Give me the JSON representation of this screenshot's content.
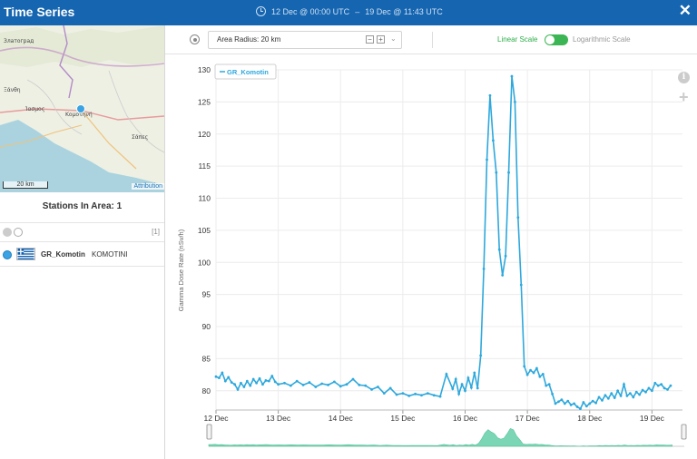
{
  "header": {
    "title": "Time Series",
    "range_start": "12 Dec @ 00:00 UTC",
    "range_sep": "–",
    "range_end": "19 Dec @ 11:43 UTC",
    "close_symbol": "✕"
  },
  "map": {
    "labels": [
      "Златоград",
      "Ξάνθη",
      "Κομοτηνή",
      "Ίασμος",
      "Σάπες"
    ],
    "scale": "20 km",
    "attribution": "Attribution"
  },
  "stations": {
    "title": "Stations In Area: 1",
    "count": "[1]",
    "items": [
      {
        "name": "GR_Komotin",
        "city": "KOMOTINI"
      }
    ]
  },
  "toolbar": {
    "radius_label": "Area Radius: 20 km",
    "minus": "−",
    "plus": "+",
    "linear_label": "Linear Scale",
    "log_label": "Logarithmic Scale"
  },
  "colors": {
    "header": "#1565b0",
    "series": "#2ea8dc",
    "navigator": "#63d0a8",
    "toggle_on": "#3cb554"
  },
  "icons": [
    "clock-icon",
    "close-icon",
    "target-icon",
    "info-icon",
    "plus-icon",
    "flag-greece-icon"
  ],
  "chart_data": {
    "type": "line",
    "ylabel": "Gamma Dose Rate (nSv/h)",
    "ylim": [
      77,
      130
    ],
    "yticks": [
      80,
      85,
      90,
      95,
      100,
      105,
      110,
      115,
      120,
      125,
      130
    ],
    "xlim": [
      0,
      7.49
    ],
    "xtick_labels": [
      "12 Dec",
      "13 Dec",
      "14 Dec",
      "15 Dec",
      "16 Dec",
      "17 Dec",
      "18 Dec",
      "19 Dec"
    ],
    "grid": true,
    "legend_placement": "top-left",
    "series": [
      {
        "name": "GR_Komotin",
        "x": [
          0.0,
          0.05,
          0.1,
          0.15,
          0.2,
          0.25,
          0.3,
          0.35,
          0.4,
          0.45,
          0.5,
          0.55,
          0.6,
          0.65,
          0.7,
          0.75,
          0.8,
          0.85,
          0.9,
          0.95,
          1.0,
          1.1,
          1.2,
          1.3,
          1.4,
          1.5,
          1.6,
          1.7,
          1.8,
          1.9,
          2.0,
          2.1,
          2.2,
          2.3,
          2.4,
          2.5,
          2.6,
          2.7,
          2.8,
          2.9,
          3.0,
          3.1,
          3.2,
          3.3,
          3.4,
          3.5,
          3.6,
          3.7,
          3.8,
          3.85,
          3.9,
          3.95,
          4.0,
          4.05,
          4.1,
          4.15,
          4.2,
          4.25,
          4.3,
          4.35,
          4.4,
          4.45,
          4.5,
          4.55,
          4.6,
          4.65,
          4.7,
          4.75,
          4.8,
          4.85,
          4.9,
          4.95,
          5.0,
          5.05,
          5.1,
          5.15,
          5.2,
          5.25,
          5.3,
          5.35,
          5.4,
          5.45,
          5.5,
          5.55,
          5.6,
          5.65,
          5.7,
          5.75,
          5.8,
          5.85,
          5.9,
          5.95,
          6.0,
          6.05,
          6.1,
          6.15,
          6.2,
          6.25,
          6.3,
          6.35,
          6.4,
          6.45,
          6.5,
          6.55,
          6.6,
          6.65,
          6.7,
          6.75,
          6.8,
          6.85,
          6.9,
          6.95,
          7.0,
          7.05,
          7.1,
          7.15,
          7.2,
          7.25,
          7.3
        ],
        "values": [
          82.2,
          82.0,
          82.8,
          81.5,
          82.1,
          81.3,
          81.0,
          80.2,
          81.2,
          80.6,
          81.5,
          80.8,
          81.8,
          81.2,
          81.9,
          81.0,
          81.6,
          81.5,
          82.3,
          81.4,
          81.0,
          81.2,
          80.8,
          81.5,
          80.9,
          81.3,
          80.6,
          81.1,
          80.9,
          81.4,
          80.7,
          81.0,
          81.8,
          80.9,
          80.8,
          80.2,
          80.6,
          79.6,
          80.4,
          79.4,
          79.6,
          79.2,
          79.5,
          79.3,
          79.6,
          79.3,
          79.1,
          82.6,
          80.3,
          81.8,
          79.5,
          81.0,
          80.0,
          82.0,
          80.5,
          82.8,
          80.4,
          85.5,
          99.0,
          116.0,
          126.0,
          119.0,
          114.0,
          102.0,
          98.0,
          101.0,
          114.0,
          129.0,
          125.0,
          107.0,
          96.5,
          83.8,
          82.5,
          83.2,
          82.8,
          83.5,
          82.2,
          82.6,
          80.8,
          81.0,
          79.5,
          78.0,
          78.3,
          78.6,
          78.0,
          78.4,
          77.8,
          78.0,
          77.5,
          77.2,
          78.2,
          77.6,
          78.0,
          78.4,
          78.1,
          79.0,
          78.5,
          79.3,
          78.8,
          79.6,
          78.9,
          80.0,
          79.2,
          81.0,
          79.2,
          79.6,
          79.0,
          79.8,
          79.4,
          80.1,
          79.8,
          80.4,
          80.0,
          81.2,
          80.8,
          81.0,
          80.4,
          80.2,
          80.8
        ]
      }
    ]
  }
}
